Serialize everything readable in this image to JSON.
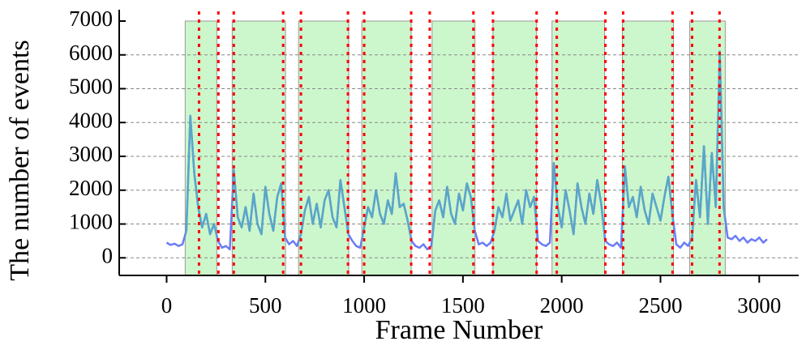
{
  "chart_data": {
    "type": "line",
    "xlabel": "Frame Number",
    "ylabel": "The number of events",
    "xlim": [
      -240,
      3200
    ],
    "ylim": [
      -520,
      7000
    ],
    "xticks": [
      0,
      500,
      1000,
      1500,
      2000,
      2500,
      3000
    ],
    "yticks": [
      0,
      1000,
      2000,
      3000,
      4000,
      5000,
      6000,
      7000
    ],
    "grid": true,
    "region_color": "#ccf7cc",
    "marker_line_color": "#ff0000",
    "regions": [
      [
        94,
        254
      ],
      [
        332,
        602
      ],
      [
        668,
        922
      ],
      [
        988,
        1238
      ],
      [
        1344,
        1561
      ],
      [
        1652,
        1873
      ],
      [
        1951,
        2217
      ],
      [
        2307,
        2566
      ],
      [
        2648,
        2828
      ]
    ],
    "vlines": [
      164,
      262,
      340,
      590,
      680,
      918,
      1000,
      1238,
      1332,
      1553,
      1652,
      1873,
      1975,
      2221,
      2311,
      2561,
      2660,
      2799
    ],
    "series": [
      {
        "color": "#6a7cf5",
        "highlight_color": "#5aa6c8",
        "x": [
          0,
          20,
          40,
          60,
          80,
          100,
          120,
          140,
          160,
          180,
          200,
          220,
          240,
          260,
          280,
          300,
          320,
          340,
          360,
          380,
          400,
          420,
          440,
          460,
          480,
          500,
          520,
          540,
          560,
          580,
          600,
          620,
          640,
          660,
          680,
          700,
          720,
          740,
          760,
          780,
          800,
          820,
          840,
          860,
          880,
          900,
          920,
          940,
          960,
          980,
          1000,
          1020,
          1040,
          1060,
          1080,
          1100,
          1120,
          1140,
          1160,
          1180,
          1200,
          1220,
          1240,
          1260,
          1280,
          1300,
          1320,
          1340,
          1360,
          1380,
          1400,
          1420,
          1440,
          1460,
          1480,
          1500,
          1520,
          1540,
          1560,
          1580,
          1600,
          1620,
          1640,
          1660,
          1680,
          1700,
          1720,
          1740,
          1760,
          1780,
          1800,
          1820,
          1840,
          1860,
          1880,
          1900,
          1920,
          1940,
          1960,
          1980,
          2000,
          2020,
          2040,
          2060,
          2080,
          2100,
          2120,
          2140,
          2160,
          2180,
          2200,
          2220,
          2240,
          2260,
          2280,
          2300,
          2320,
          2340,
          2360,
          2380,
          2400,
          2420,
          2440,
          2460,
          2480,
          2500,
          2520,
          2540,
          2560,
          2580,
          2600,
          2620,
          2640,
          2660,
          2680,
          2700,
          2720,
          2740,
          2760,
          2780,
          2800,
          2820,
          2840,
          2860,
          2880,
          2900,
          2920,
          2940,
          2960,
          2980,
          3000,
          3020,
          3040
        ],
        "values": [
          450,
          380,
          420,
          350,
          400,
          800,
          4200,
          2500,
          1500,
          900,
          1300,
          700,
          1000,
          500,
          300,
          350,
          250,
          2600,
          1200,
          900,
          1500,
          800,
          1900,
          1000,
          700,
          2100,
          1300,
          800,
          1800,
          2200,
          600,
          400,
          500,
          350,
          700,
          1400,
          1800,
          1000,
          1600,
          900,
          1700,
          2000,
          1200,
          900,
          2300,
          1500,
          700,
          500,
          350,
          300,
          900,
          1500,
          1200,
          2000,
          1300,
          1000,
          1700,
          1300,
          2500,
          1500,
          1600,
          1100,
          500,
          350,
          300,
          400,
          250,
          350,
          1400,
          1700,
          1200,
          2100,
          1300,
          1000,
          1900,
          1400,
          2200,
          1800,
          800,
          400,
          450,
          350,
          450,
          800,
          1500,
          1200,
          1900,
          1100,
          1400,
          1700,
          1000,
          2000,
          1500,
          1800,
          500,
          400,
          350,
          450,
          2800,
          1500,
          900,
          2000,
          1400,
          700,
          2200,
          1500,
          1000,
          1900,
          1300,
          2300,
          1600,
          500,
          400,
          350,
          450,
          300,
          2700,
          1500,
          1800,
          1200,
          2100,
          1400,
          1000,
          1900,
          1500,
          1100,
          1800,
          2400,
          1300,
          400,
          300,
          450,
          350,
          600,
          2300,
          1200,
          3300,
          1000,
          3100,
          1500,
          6100,
          1500,
          600,
          550,
          650,
          500,
          600,
          450,
          550,
          500,
          600,
          450,
          550
        ]
      }
    ]
  }
}
